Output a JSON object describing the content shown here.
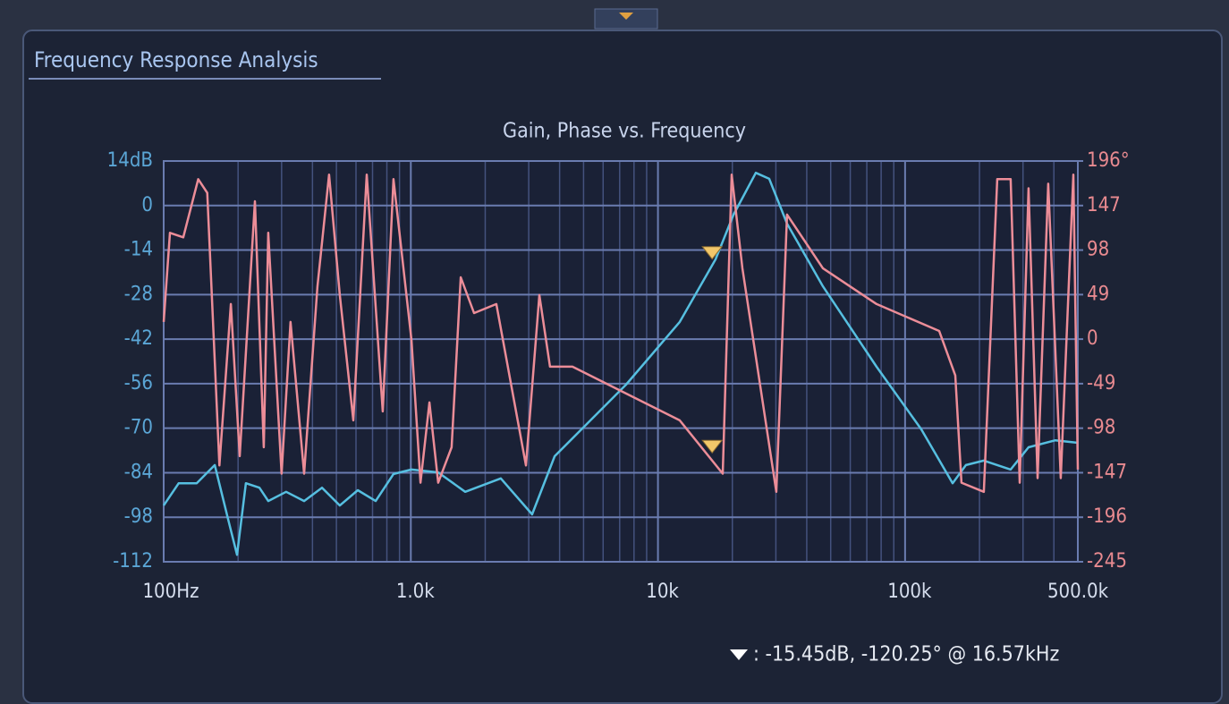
{
  "panel_title": "Frequency Response Analysis",
  "chart_data": {
    "type": "line",
    "title": "Gain, Phase vs. Frequency",
    "xscale": "log",
    "xlim": [
      100,
      500000
    ],
    "xticks": [
      {
        "value": 100,
        "label": "100Hz"
      },
      {
        "value": 1000,
        "label": "1.0k"
      },
      {
        "value": 10000,
        "label": "10k"
      },
      {
        "value": 100000,
        "label": "100k"
      },
      {
        "value": 500000,
        "label": "500.0k"
      }
    ],
    "ylim": [
      -112,
      14
    ],
    "yticks": [
      {
        "value": 14,
        "label": "14dB"
      },
      0,
      -14,
      -28,
      -42,
      -56,
      -70,
      -84,
      -98,
      -112
    ],
    "y2lim": [
      -245,
      196
    ],
    "y2ticks": [
      {
        "value": 196,
        "label": "196°"
      },
      147,
      98,
      49,
      0,
      -49,
      -98,
      -147,
      -196,
      -245
    ],
    "grid": true,
    "minor_grid": true,
    "series": [
      {
        "color": "#56bfe0",
        "x": [
          100,
          115,
          136,
          161,
          182,
          198,
          215,
          244,
          265,
          313,
          370,
          437,
          516,
          610,
          721,
          851,
          1006,
          1291,
          1660,
          2313,
          3097,
          3818,
          4898,
          7430,
          12250,
          17100,
          20200,
          24880,
          28200,
          33300,
          46500,
          76700,
          116400,
          155700,
          176300,
          208300,
          267300,
          316000,
          405700,
          500000
        ],
        "values": [
          -94.3,
          -87.3,
          -87.3,
          -81.6,
          -98.5,
          -109.8,
          -87.3,
          -88.7,
          -92.9,
          -90,
          -92.9,
          -88.7,
          -94.3,
          -89.5,
          -92.9,
          -84.4,
          -83,
          -83.9,
          -90,
          -85.8,
          -97.1,
          -78.8,
          -70.4,
          -56.3,
          -36.6,
          -16.9,
          -2.9,
          10.3,
          8.4,
          -5.7,
          -25.4,
          -50.7,
          -70.4,
          -87.3,
          -81.6,
          -80.2,
          -83,
          -76,
          -73.8,
          -74.6
        ]
      },
      {
        "color": "#ec8d98",
        "axis": "y2",
        "x": [
          100,
          106,
          120,
          138,
          150,
          168,
          187,
          203,
          234,
          254,
          265,
          300,
          326,
          370,
          419,
          467,
          516,
          585,
          663,
          770,
          851,
          1006,
          1094,
          1189,
          1291,
          1463,
          1592,
          1803,
          2219,
          2923,
          3311,
          3657,
          4508,
          7430,
          12250,
          18280,
          19870,
          21970,
          30130,
          33300,
          46500,
          76700,
          137400,
          159600,
          169100,
          208300,
          236000,
          267300,
          290900,
          316000,
          343600,
          379600,
          426600,
          479700,
          500000
        ],
        "values": [
          18.9,
          117,
          112,
          176,
          161,
          -139,
          38.6,
          -128.7,
          151.7,
          -119,
          117,
          -148,
          18.9,
          -148,
          58,
          181,
          48.4,
          -89.4,
          181,
          -79.5,
          176,
          -0.8,
          -158,
          -69.7,
          -158,
          -119,
          68,
          28.7,
          38.6,
          -139,
          48.4,
          -30.3,
          -30.3,
          -59.8,
          -89.4,
          -148,
          181,
          78,
          -168,
          137,
          78,
          38.6,
          9,
          -40,
          -158,
          -168,
          176,
          176,
          -158,
          166,
          -153,
          171,
          -153,
          181,
          -143.5
        ]
      }
    ],
    "marker": {
      "x": 16570,
      "gain": -15.45,
      "phase": -120.25,
      "color": "#f2c76a"
    },
    "readout": ":  -15.45dB, -120.25° @ 16.57kHz"
  }
}
